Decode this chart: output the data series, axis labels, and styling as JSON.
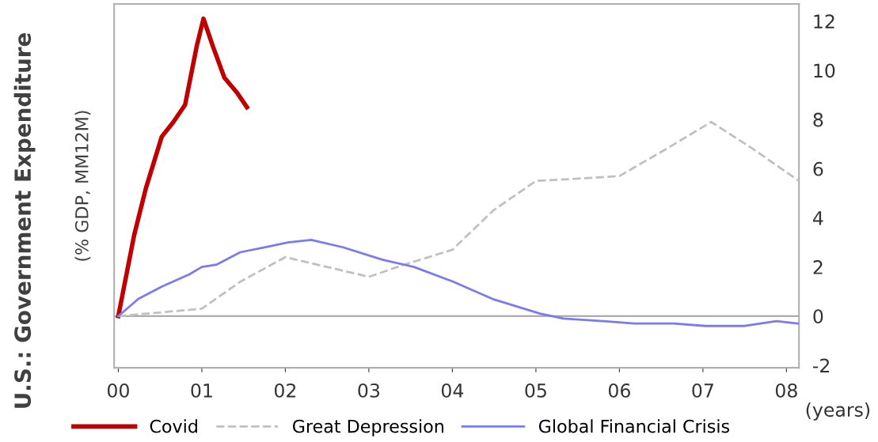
{
  "chart_data": {
    "type": "line",
    "ylabel": "U.S.: Government Expenditure",
    "xlabel": "(years)",
    "annotations": [
      "(% GDP, MM12M)"
    ],
    "xlim": [
      -0.05,
      8.15
    ],
    "xticks": [
      {
        "value": 0,
        "label": "00"
      },
      {
        "value": 1,
        "label": "01"
      },
      {
        "value": 2,
        "label": "02"
      },
      {
        "value": 3,
        "label": "03"
      },
      {
        "value": 4,
        "label": "04"
      },
      {
        "value": 5,
        "label": "05"
      },
      {
        "value": 6,
        "label": "06"
      },
      {
        "value": 7,
        "label": "07"
      },
      {
        "value": 8,
        "label": "08"
      }
    ],
    "ylim": [
      -2.1,
      12.7
    ],
    "yticks": [
      -2,
      0,
      2,
      4,
      6,
      8,
      10,
      12
    ],
    "ref_lines": [
      {
        "axis": "y",
        "value": 0,
        "color": "#a0a0a0"
      }
    ],
    "legend": "bottom",
    "grid": false,
    "marker": "none",
    "series": [
      {
        "name": "Covid",
        "color": "#c00000",
        "line_style": "solid",
        "x": [
          0,
          0.19,
          0.33,
          0.52,
          0.66,
          0.8,
          0.94,
          1.02,
          1.13,
          1.27,
          1.42,
          1.54
        ],
        "values": [
          0,
          3.3,
          5.2,
          7.3,
          7.9,
          8.6,
          11,
          12.1,
          11,
          9.7,
          9.1,
          8.5
        ]
      },
      {
        "name": "Great Depression",
        "color": "#c0c0c0",
        "line_style": "dashed",
        "x": [
          0,
          1,
          1.46,
          2,
          3,
          3.43,
          4,
          4.49,
          5,
          5.53,
          6,
          6.56,
          7.1,
          7.6,
          8.15
        ],
        "values": [
          0,
          0.3,
          1.4,
          2.4,
          1.6,
          2.1,
          2.7,
          4.3,
          5.5,
          5.6,
          5.7,
          6.8,
          7.9,
          6.8,
          5.5
        ]
      },
      {
        "name": "Global Financial Crisis",
        "color": "#7b7bef",
        "line_style": "solid",
        "x": [
          0,
          0.24,
          0.52,
          0.85,
          1,
          1.18,
          1.46,
          1.75,
          2.03,
          2.31,
          2.69,
          3.16,
          3.54,
          4.01,
          4.48,
          5.05,
          5.33,
          5.8,
          6.18,
          6.65,
          7.03,
          7.5,
          7.88,
          8.14
        ],
        "values": [
          0,
          0.7,
          1.2,
          1.7,
          2.0,
          2.1,
          2.6,
          2.8,
          3.0,
          3.1,
          2.8,
          2.3,
          2.0,
          1.4,
          0.7,
          0.1,
          -0.1,
          -0.2,
          -0.3,
          -0.3,
          -0.4,
          -0.4,
          -0.2,
          -0.3
        ]
      }
    ]
  }
}
